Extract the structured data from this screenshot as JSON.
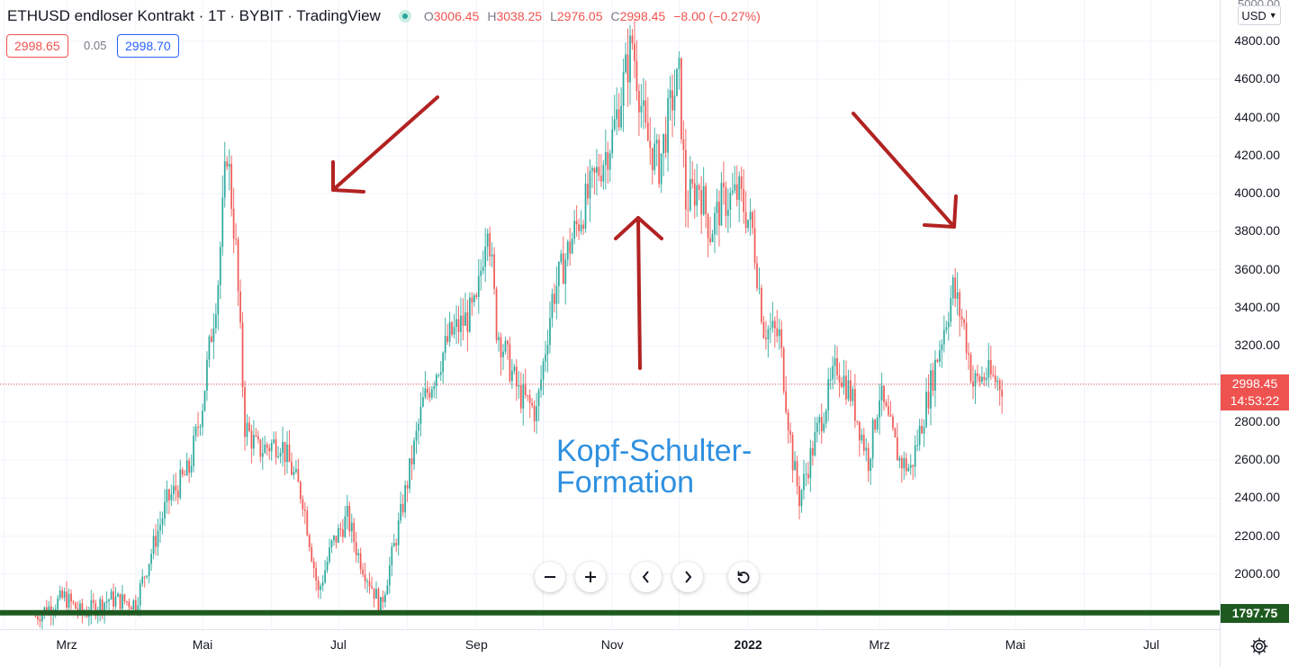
{
  "legend": {
    "symbol": "ETHUSD endloser Kontrakt",
    "interval": "1T",
    "exchange": "BYBIT",
    "platform": "TradingView",
    "status_color": "#26a69a",
    "open_label": "O",
    "open": "3006.45",
    "high_label": "H",
    "high": "3038.25",
    "low_label": "L",
    "low": "2976.05",
    "close_label": "C",
    "close": "2998.45",
    "change": "−8.00 (−0.27%)"
  },
  "quote": {
    "bid": "2998.65",
    "spread": "0.05",
    "ask": "2998.70"
  },
  "currency": {
    "label": "USD",
    "icon": "chevron-down-icon"
  },
  "price_axis": {
    "top_label": "5000.00",
    "labels": [
      "4800.00",
      "4600.00",
      "4400.00",
      "4200.00",
      "4000.00",
      "3800.00",
      "3600.00",
      "3400.00",
      "3200.00",
      "2800.00",
      "2600.00",
      "2400.00",
      "2200.00",
      "2000.00"
    ]
  },
  "current_price": {
    "price": "2998.45",
    "countdown": "14:53:22",
    "color": "#ef5350"
  },
  "support_line": {
    "price": "1797.75",
    "color": "#1e5a20"
  },
  "time_axis": {
    "labels": [
      "Mrz",
      "Mai",
      "Jul",
      "Sep",
      "Nov",
      "2022",
      "Mrz",
      "Mai",
      "Jul"
    ]
  },
  "annotation": {
    "line1": "Kopf-Schulter-",
    "line2": "Formation",
    "color": "#2e90e0"
  },
  "arrows_color": "#b22222",
  "controls": [
    {
      "name": "zoom-out",
      "icon": "minus-icon"
    },
    {
      "name": "zoom-in",
      "icon": "plus-icon"
    },
    {
      "name": "scroll-left",
      "icon": "chevron-left-icon"
    },
    {
      "name": "scroll-right",
      "icon": "chevron-right-icon"
    },
    {
      "name": "reset",
      "icon": "reset-icon"
    }
  ],
  "chart_data": {
    "type": "candlestick",
    "up_color": "#26a69a",
    "down_color": "#ef5350",
    "ylim": [
      1600,
      5000
    ],
    "grid": true,
    "x_ticks": [
      "Mrz",
      "Mai",
      "Jul",
      "Sep",
      "Nov",
      "2022",
      "Mrz",
      "Mai",
      "Jul"
    ],
    "price_path": [
      [
        "2021-02-15",
        1780
      ],
      [
        "2021-02-28",
        1880
      ],
      [
        "2021-03-08",
        1790
      ],
      [
        "2021-03-20",
        1870
      ],
      [
        "2021-04-01",
        1850
      ],
      [
        "2021-04-15",
        2380
      ],
      [
        "2021-04-25",
        2550
      ],
      [
        "2021-05-01",
        2900
      ],
      [
        "2021-05-08",
        3550
      ],
      [
        "2021-05-12",
        4240
      ],
      [
        "2021-05-16",
        3700
      ],
      [
        "2021-05-20",
        2780
      ],
      [
        "2021-05-26",
        2650
      ],
      [
        "2021-06-05",
        2700
      ],
      [
        "2021-06-15",
        2400
      ],
      [
        "2021-06-22",
        1900
      ],
      [
        "2021-06-28",
        2150
      ],
      [
        "2021-07-05",
        2300
      ],
      [
        "2021-07-10",
        2100
      ],
      [
        "2021-07-20",
        1830
      ],
      [
        "2021-07-28",
        2250
      ],
      [
        "2021-08-08",
        2900
      ],
      [
        "2021-08-20",
        3250
      ],
      [
        "2021-09-01",
        3400
      ],
      [
        "2021-09-06",
        3900
      ],
      [
        "2021-09-10",
        3300
      ],
      [
        "2021-09-20",
        2950
      ],
      [
        "2021-09-28",
        2850
      ],
      [
        "2021-10-05",
        3450
      ],
      [
        "2021-10-15",
        3800
      ],
      [
        "2021-10-25",
        4100
      ],
      [
        "2021-11-01",
        4300
      ],
      [
        "2021-11-10",
        4800
      ],
      [
        "2021-11-16",
        4300
      ],
      [
        "2021-11-22",
        4150
      ],
      [
        "2021-11-28",
        4500
      ],
      [
        "2021-12-01",
        4600
      ],
      [
        "2021-12-04",
        3950
      ],
      [
        "2021-12-10",
        4050
      ],
      [
        "2021-12-15",
        3800
      ],
      [
        "2021-12-20",
        3950
      ],
      [
        "2021-12-28",
        4000
      ],
      [
        "2022-01-03",
        3800
      ],
      [
        "2022-01-08",
        3300
      ],
      [
        "2022-01-15",
        3250
      ],
      [
        "2022-01-21",
        2600
      ],
      [
        "2022-01-24",
        2400
      ],
      [
        "2022-02-01",
        2750
      ],
      [
        "2022-02-10",
        3100
      ],
      [
        "2022-02-16",
        2950
      ],
      [
        "2022-02-24",
        2600
      ],
      [
        "2022-03-01",
        2950
      ],
      [
        "2022-03-10",
        2600
      ],
      [
        "2022-03-15",
        2550
      ],
      [
        "2022-03-22",
        2900
      ],
      [
        "2022-03-30",
        3300
      ],
      [
        "2022-04-03",
        3500
      ],
      [
        "2022-04-08",
        3300
      ],
      [
        "2022-04-12",
        3000
      ],
      [
        "2022-04-18",
        3050
      ],
      [
        "2022-04-25",
        2998
      ]
    ],
    "last_price": 2998.45,
    "support_level": 1797.75
  }
}
